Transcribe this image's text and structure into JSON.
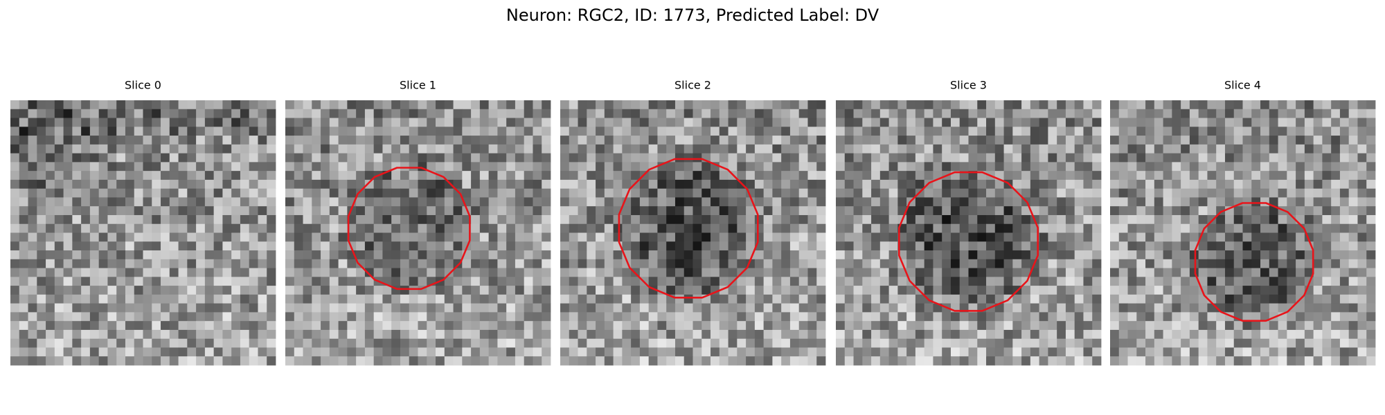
{
  "title": "Neuron: RGC2, ID: 1773, Predicted Label: DV",
  "panels": [
    {
      "title": "Slice 0"
    },
    {
      "title": "Slice 1"
    },
    {
      "title": "Slice 2"
    },
    {
      "title": "Slice 3"
    },
    {
      "title": "Slice 4"
    }
  ]
}
